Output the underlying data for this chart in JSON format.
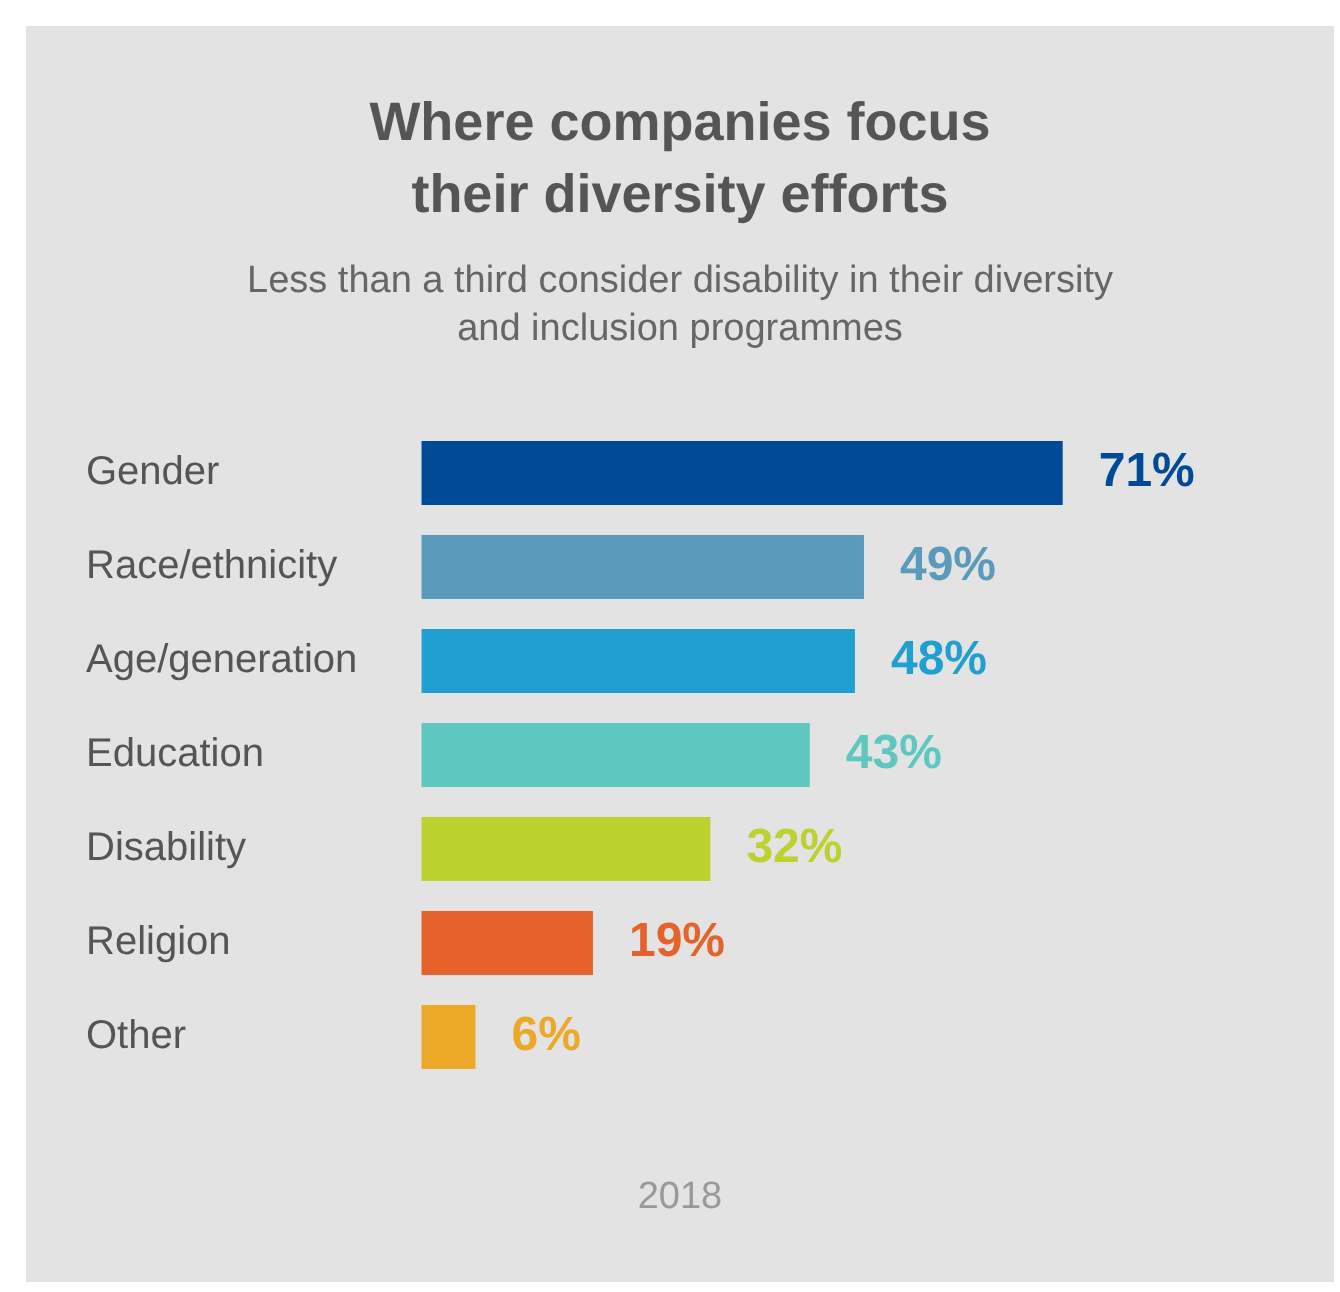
{
  "chart_data": {
    "type": "bar",
    "orientation": "horizontal",
    "title": "Where companies focus their diversity efforts",
    "subtitle": "Less than a third consider disability in their diversity and inclusion programmes",
    "categories": [
      "Gender",
      "Race/ethnicity",
      "Age/generation",
      "Education",
      "Disability",
      "Religion",
      "Other"
    ],
    "values": [
      71,
      49,
      48,
      43,
      32,
      19,
      6
    ],
    "colors": [
      "#004a97",
      "#5a9aba",
      "#1fa0d0",
      "#5ec8c0",
      "#bcd22e",
      "#e5632a",
      "#eca927"
    ],
    "value_labels": [
      "71%",
      "49%",
      "48%",
      "43%",
      "32%",
      "19%",
      "6%"
    ],
    "annotations": [
      "2018"
    ],
    "grid": false,
    "legend": false
  }
}
